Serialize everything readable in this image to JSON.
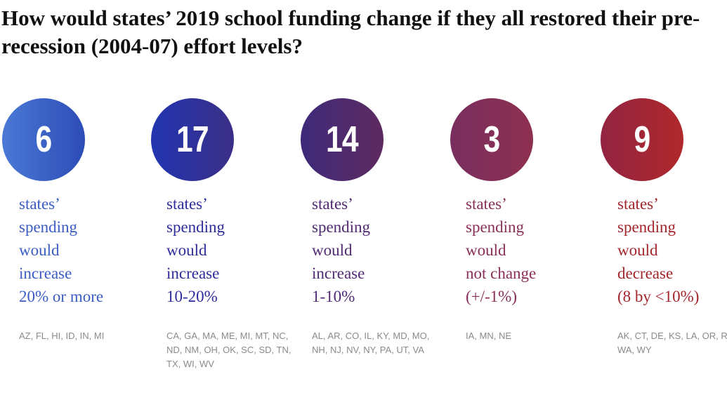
{
  "title": "How would states’ 2019 school funding change if they all restored their pre-recession (2004-07) effort levels?",
  "chart_data": {
    "type": "table",
    "categories": [
      {
        "count": 6,
        "lines": [
          "states’",
          "spending",
          "would",
          "increase",
          "20% or more"
        ],
        "states": "AZ, FL, HI, ID, IN, MI",
        "color": "#3a5cc4",
        "gradient": [
          "#4a79d6",
          "#2d4cb6"
        ]
      },
      {
        "count": 17,
        "lines": [
          "states’",
          "spending",
          "would",
          "increase",
          "10-20%"
        ],
        "states": "CA, GA, MA, ME, MI, MT, NC, ND, NM, OH, OK, SC, SD, TN, TX, WI, WV",
        "color": "#2d2c9a",
        "gradient": [
          "#2234b0",
          "#3a2f86"
        ]
      },
      {
        "count": 14,
        "lines": [
          "states’",
          "spending",
          "would",
          "increase",
          "1-10%"
        ],
        "states": "AL, AR, CO, IL, KY, MD, MO, NH, NJ, NV, NY, PA, UT, VA",
        "color": "#502a72",
        "gradient": [
          "#3e2a7a",
          "#5e2a60"
        ]
      },
      {
        "count": 3,
        "lines": [
          "states’",
          "spending",
          "would",
          "not change",
          "(+/-1%)"
        ],
        "states": "IA, MN, NE",
        "color": "#8a2f58",
        "gradient": [
          "#792e5f",
          "#8e3050"
        ]
      },
      {
        "count": 9,
        "lines": [
          "states’",
          "spending",
          "would",
          "decrease",
          "(8 by <10%)"
        ],
        "states": "AK, CT, DE, KS, LA, OR, RI, WA, WY",
        "color": "#a3262d",
        "gradient": [
          "#922442",
          "#b0282a"
        ]
      }
    ]
  }
}
